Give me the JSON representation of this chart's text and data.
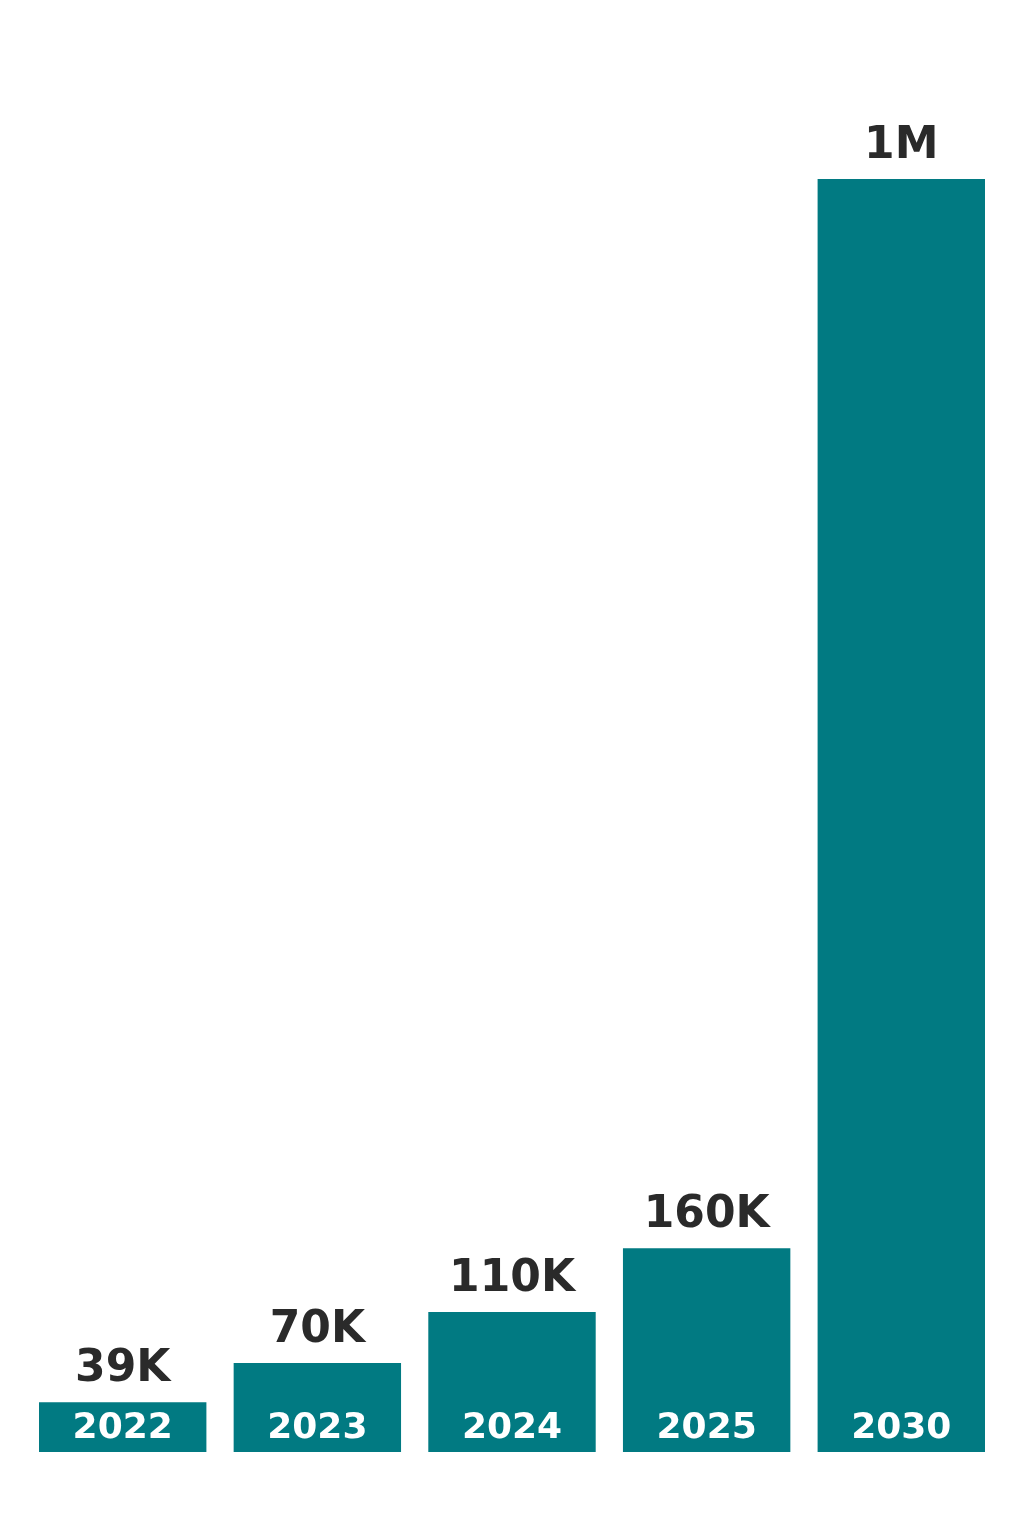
{
  "chart_data": {
    "type": "bar",
    "categories": [
      "2022",
      "2023",
      "2024",
      "2025",
      "2030"
    ],
    "values": [
      39000,
      70000,
      110000,
      160000,
      1000000
    ],
    "color": "#017a82",
    "value_labels": [
      "39K",
      "70K",
      "110K",
      "160K",
      "1M"
    ],
    "tick_labels": "x"
  }
}
